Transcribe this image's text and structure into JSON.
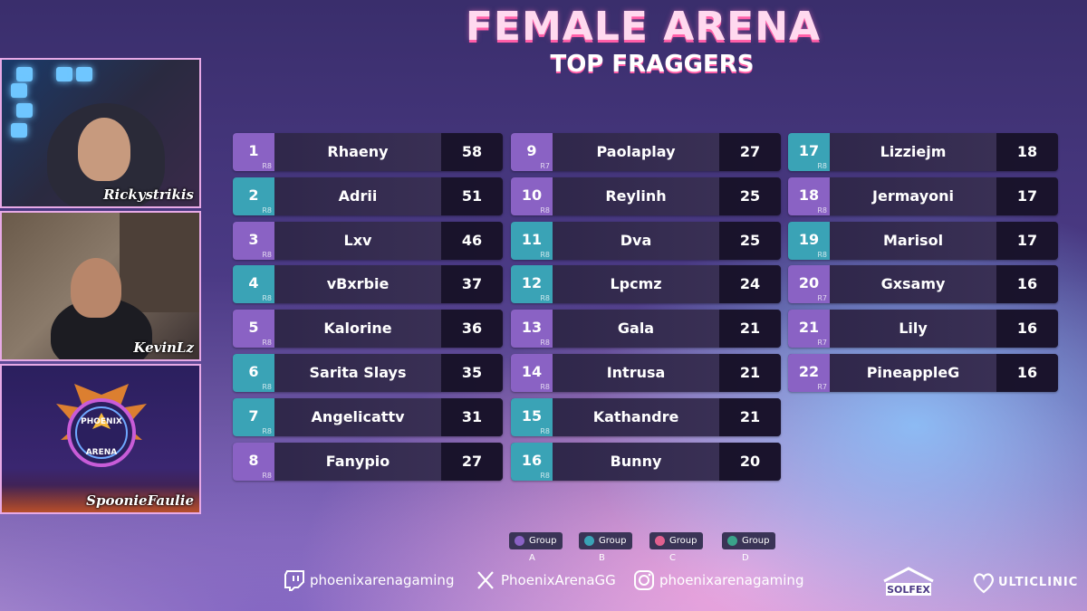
{
  "header": {
    "title": "FEMALE ARENA",
    "subtitle": "TOP FRAGGERS"
  },
  "cams": [
    {
      "name": "Rickystrikis"
    },
    {
      "name": "KevinLz"
    },
    {
      "name": "SpoonieFaulie",
      "logo_top": "PHOENIX",
      "logo_bottom": "ARENA"
    }
  ],
  "columns": [
    [
      {
        "rank": "1",
        "group": "A",
        "region": "R8",
        "player": "Rhaeny",
        "score": "58"
      },
      {
        "rank": "2",
        "group": "B",
        "region": "R8",
        "player": "Adrii",
        "score": "51"
      },
      {
        "rank": "3",
        "group": "A",
        "region": "R8",
        "player": "Lxv",
        "score": "46"
      },
      {
        "rank": "4",
        "group": "B",
        "region": "R8",
        "player": "vBxrbie",
        "score": "37"
      },
      {
        "rank": "5",
        "group": "A",
        "region": "R8",
        "player": "Kalorine",
        "score": "36"
      },
      {
        "rank": "6",
        "group": "B",
        "region": "R8",
        "player": "Sarita Slays",
        "score": "35"
      },
      {
        "rank": "7",
        "group": "B",
        "region": "R8",
        "player": "Angelicattv",
        "score": "31"
      },
      {
        "rank": "8",
        "group": "A",
        "region": "R8",
        "player": "Fanypio",
        "score": "27"
      }
    ],
    [
      {
        "rank": "9",
        "group": "A",
        "region": "R7",
        "player": "Paolaplay",
        "score": "27"
      },
      {
        "rank": "10",
        "group": "A",
        "region": "R8",
        "player": "Reylinh",
        "score": "25"
      },
      {
        "rank": "11",
        "group": "B",
        "region": "R8",
        "player": "Dva",
        "score": "25"
      },
      {
        "rank": "12",
        "group": "B",
        "region": "R8",
        "player": "Lpcmz",
        "score": "24"
      },
      {
        "rank": "13",
        "group": "A",
        "region": "R8",
        "player": "Gala",
        "score": "21"
      },
      {
        "rank": "14",
        "group": "A",
        "region": "R8",
        "player": "Intrusa",
        "score": "21"
      },
      {
        "rank": "15",
        "group": "B",
        "region": "R8",
        "player": "Kathandre",
        "score": "21"
      },
      {
        "rank": "16",
        "group": "B",
        "region": "R8",
        "player": "Bunny",
        "score": "20"
      }
    ],
    [
      {
        "rank": "17",
        "group": "B",
        "region": "R8",
        "player": "Lizziejm",
        "score": "18"
      },
      {
        "rank": "18",
        "group": "A",
        "region": "R8",
        "player": "Jermayoni",
        "score": "17"
      },
      {
        "rank": "19",
        "group": "B",
        "region": "R8",
        "player": "Marisol",
        "score": "17"
      },
      {
        "rank": "20",
        "group": "A",
        "region": "R7",
        "player": "Gxsamy",
        "score": "16"
      },
      {
        "rank": "21",
        "group": "A",
        "region": "R7",
        "player": "Lily",
        "score": "16"
      },
      {
        "rank": "22",
        "group": "A",
        "region": "R7",
        "player": "PineappleG",
        "score": "16"
      }
    ]
  ],
  "legend": [
    {
      "label": "Group A",
      "color": "#8a62c4"
    },
    {
      "label": "Group B",
      "color": "#3aa3b6"
    },
    {
      "label": "Group C",
      "color": "#e0608f"
    },
    {
      "label": "Group D",
      "color": "#3aa38a"
    }
  ],
  "socials": [
    {
      "icon": "twitch-icon",
      "handle": "phoenixarenagaming"
    },
    {
      "icon": "x-icon",
      "handle": "PhoenixArenaGG"
    },
    {
      "icon": "instagram-icon",
      "handle": "phoenixarenagaming"
    }
  ],
  "sponsors": [
    {
      "name": "SOLFEX"
    },
    {
      "name": "ULTICLINIC"
    }
  ]
}
